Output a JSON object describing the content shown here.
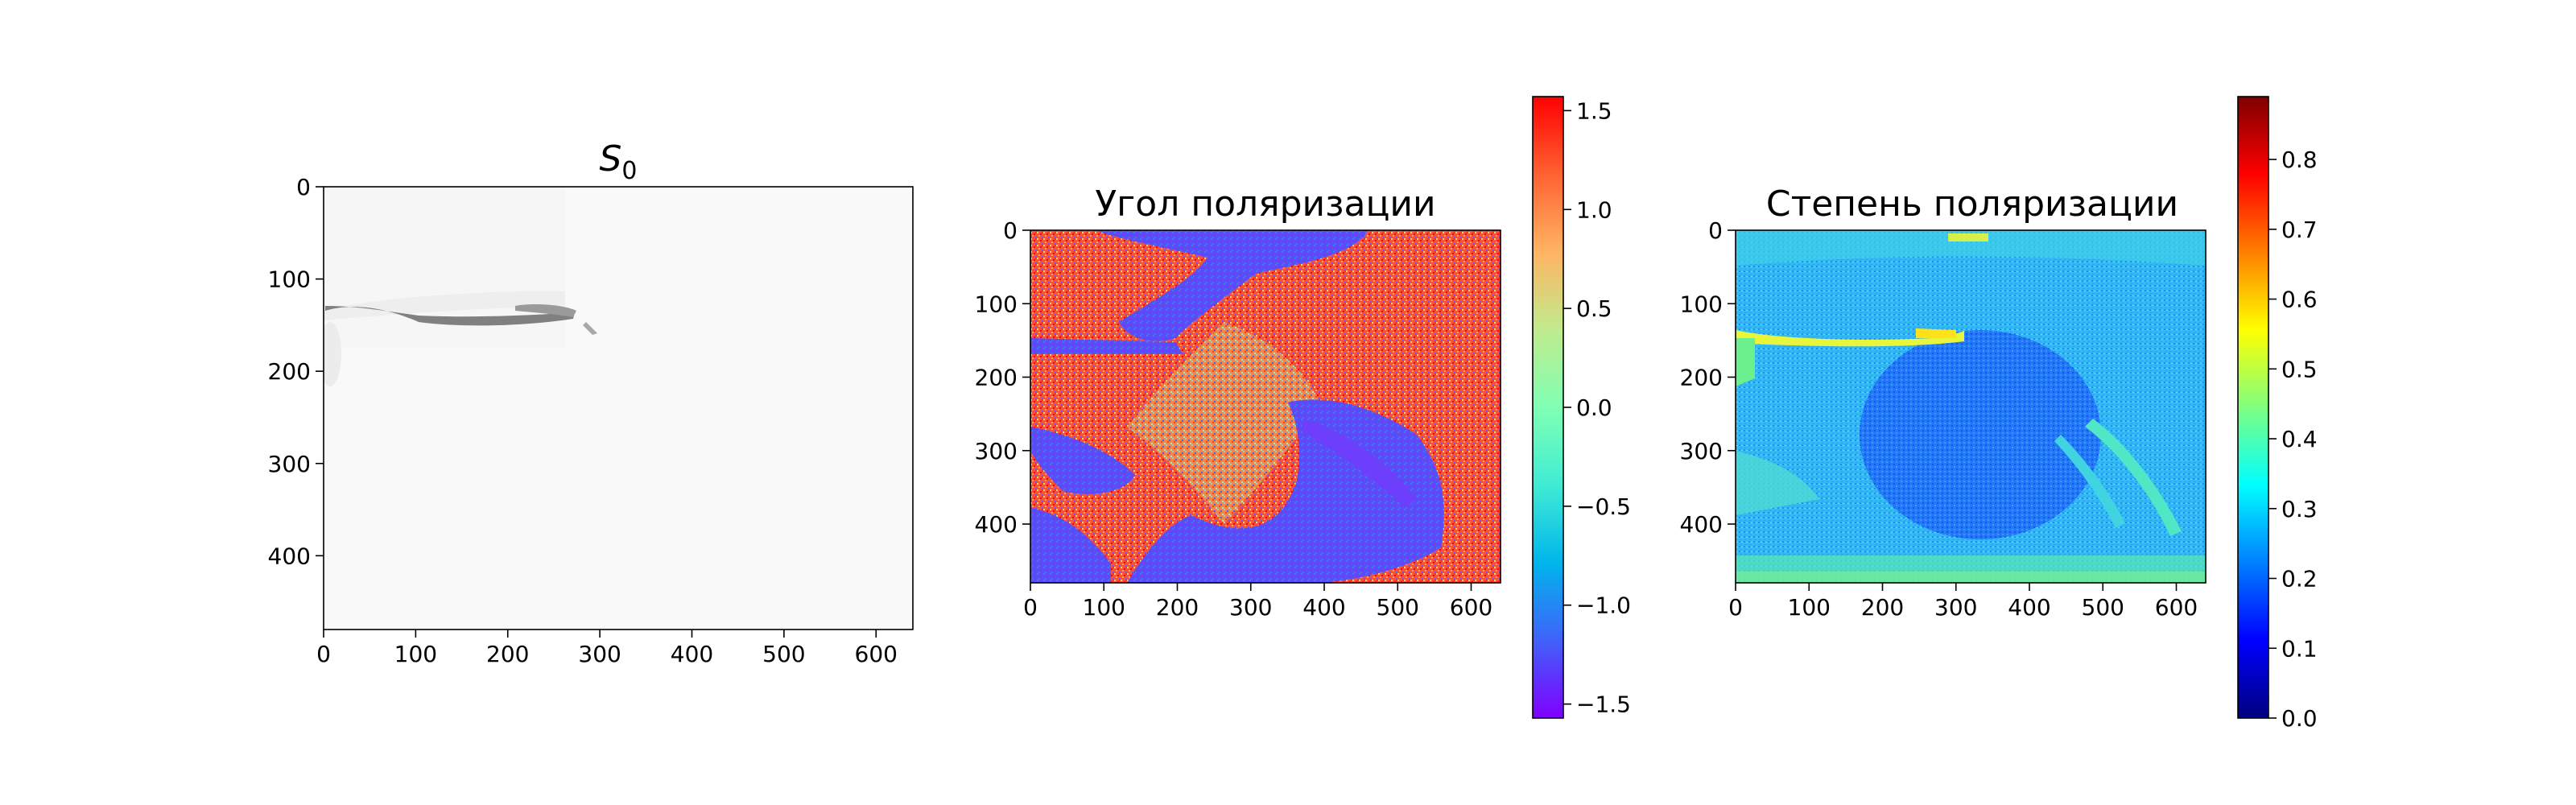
{
  "chart_data": [
    {
      "type": "heatmap",
      "title": "S",
      "title_subscript": "0",
      "colormap": "gray",
      "x_ticks": [
        0,
        100,
        200,
        300,
        400,
        500,
        600
      ],
      "y_ticks": [
        0,
        100,
        200,
        300,
        400
      ],
      "xlim": [
        0,
        640
      ],
      "ylim": [
        480,
        0
      ],
      "grid": false,
      "description_values": "mostly near-white intensity image with a thin dark curved rim near y=140-160, x=0-300"
    },
    {
      "type": "heatmap",
      "title": "Угол поляризации",
      "colormap": "rainbow",
      "x_ticks": [
        0,
        100,
        200,
        300,
        400,
        500,
        600
      ],
      "y_ticks": [
        0,
        100,
        200,
        300,
        400
      ],
      "xlim": [
        0,
        640
      ],
      "ylim": [
        480,
        0
      ],
      "grid": false,
      "colorbar": {
        "min": -1.5708,
        "max": 1.5708,
        "ticks": [
          "1.5",
          "1.0",
          "0.5",
          "0.0",
          "−0.5",
          "−1.0",
          "−1.5"
        ],
        "tick_values": [
          1.5,
          1.0,
          0.5,
          0.0,
          -0.5,
          -1.0,
          -1.5
        ]
      }
    },
    {
      "type": "heatmap",
      "title": "Степень поляризации",
      "colormap": "jet",
      "x_ticks": [
        0,
        100,
        200,
        300,
        400,
        500,
        600
      ],
      "y_ticks": [
        0,
        100,
        200,
        300,
        400
      ],
      "xlim": [
        0,
        640
      ],
      "ylim": [
        480,
        0
      ],
      "grid": false,
      "colorbar": {
        "min": 0.0,
        "max": 0.89,
        "ticks": [
          "0.8",
          "0.7",
          "0.6",
          "0.5",
          "0.4",
          "0.3",
          "0.2",
          "0.1",
          "0.0"
        ],
        "tick_values": [
          0.8,
          0.7,
          0.6,
          0.5,
          0.4,
          0.3,
          0.2,
          0.1,
          0.0
        ]
      }
    }
  ],
  "colors": {
    "rainbow": [
      "#8000ff",
      "#4062fa",
      "#00b5eb",
      "#40ecd4",
      "#80ffb4",
      "#c0eb8d",
      "#ffb462",
      "#ff6232",
      "#ff0000"
    ],
    "jet": [
      "#00007f",
      "#0000ff",
      "#007fff",
      "#00ffff",
      "#7fff7f",
      "#ffff00",
      "#ff7f00",
      "#ff0000",
      "#7f0000"
    ]
  }
}
